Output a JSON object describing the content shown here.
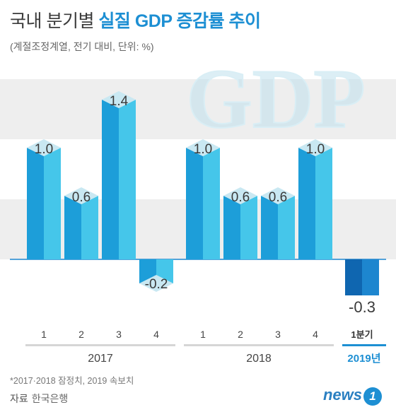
{
  "header": {
    "title_part1": "국내 분기별",
    "title_part2": "실질 GDP 증감률 추이",
    "subtitle": "(계절조정계열, 전기 대비, 단위: %)"
  },
  "watermark": "GDP",
  "footnote": "*2017·2018 잠정치, 2019 속보치",
  "source_label": "자료",
  "source_name": "한국은행",
  "logo_text": "news",
  "logo_mark": "1",
  "colors": {
    "bar_front": "#1d9ed9",
    "bar_side": "#45c6ea",
    "bar_2019_front": "#0f66b0",
    "bar_2019_side": "#1d86cf",
    "label_diamond": "#c9e8f2",
    "band": "#eeeeee",
    "accent_2019": "#1d8fd3"
  },
  "chart_data": {
    "type": "bar",
    "ylim": [
      -0.5,
      2.0
    ],
    "x": [
      {
        "quarter": "1",
        "year": "2017",
        "value": 1.0,
        "label": "1.0"
      },
      {
        "quarter": "2",
        "year": "2017",
        "value": 0.6,
        "label": "0.6"
      },
      {
        "quarter": "3",
        "year": "2017",
        "value": 1.4,
        "label": "1.4"
      },
      {
        "quarter": "4",
        "year": "2017",
        "value": -0.2,
        "label": "-0.2"
      },
      {
        "quarter": "1",
        "year": "2018",
        "value": 1.0,
        "label": "1.0"
      },
      {
        "quarter": "2",
        "year": "2018",
        "value": 0.6,
        "label": "0.6"
      },
      {
        "quarter": "3",
        "year": "2018",
        "value": 0.6,
        "label": "0.6"
      },
      {
        "quarter": "4",
        "year": "2018",
        "value": 1.0,
        "label": "1.0"
      },
      {
        "quarter": "1분기",
        "year": "2019년",
        "value": -0.3,
        "label": "-0.3"
      }
    ],
    "groups": [
      {
        "label": "2017",
        "count": 4
      },
      {
        "label": "2018",
        "count": 4
      },
      {
        "label": "2019년",
        "count": 1
      }
    ]
  }
}
